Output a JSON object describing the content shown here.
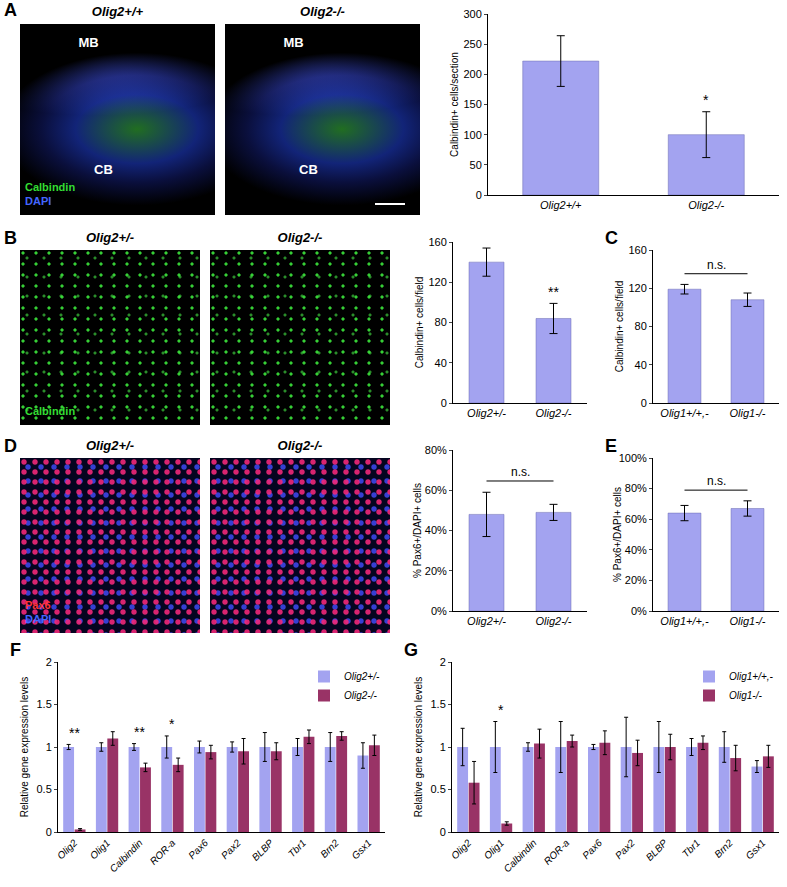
{
  "image_rows": [
    {
      "panel": "A",
      "images": [
        {
          "label": "Olig2+/+",
          "regions": [
            "MB",
            "CB"
          ],
          "stains": [
            {
              "text": "Calbindin",
              "color": "#33dd33"
            },
            {
              "text": "DAPI",
              "color": "#4466ff"
            }
          ]
        },
        {
          "label": "Olig2-/-",
          "regions": [
            "MB",
            "CB"
          ]
        }
      ]
    },
    {
      "panel": "B",
      "images": [
        {
          "label": "Olig2+/-",
          "stains": [
            {
              "text": "Calbindin",
              "color": "#33dd33"
            }
          ]
        },
        {
          "label": "Olig2-/-"
        }
      ]
    },
    {
      "panel": "D",
      "images": [
        {
          "label": "Olig2+/-",
          "stains": [
            {
              "text": "Pax6",
              "color": "#ff3333"
            },
            {
              "text": "DAPI",
              "color": "#4466ff"
            }
          ]
        },
        {
          "label": "Olig2-/-"
        }
      ]
    }
  ],
  "chart_data": [
    {
      "type": "bar",
      "categories": [
        "Olig2+/+",
        "Olig2-/-"
      ],
      "values": [
        222,
        100
      ],
      "errors": [
        42,
        38
      ],
      "color": "#a3a3f0",
      "ylabel": "Calbindin+ cells/section",
      "ylim": [
        0,
        300
      ],
      "yticks": [
        0,
        50,
        100,
        150,
        200,
        250,
        300
      ],
      "grid": false,
      "annotations": [
        {
          "text": "*",
          "category": "Olig2-/-"
        }
      ]
    },
    {
      "type": "bar",
      "categories": [
        "Olig2+/-",
        "Olig2-/-"
      ],
      "values": [
        140,
        84
      ],
      "errors": [
        14,
        15
      ],
      "color": "#a3a3f0",
      "ylabel": "Calbindin+ cells/field",
      "ylim": [
        0,
        160
      ],
      "yticks": [
        0,
        40,
        80,
        120,
        160
      ],
      "grid": false,
      "annotations": [
        {
          "text": "**",
          "category": "Olig2-/-"
        }
      ]
    },
    {
      "type": "bar",
      "title": "C",
      "categories": [
        "Olig1+/+,-",
        "Olig1-/-"
      ],
      "values": [
        119,
        108
      ],
      "errors": [
        5,
        7
      ],
      "color": "#a3a3f0",
      "ylabel": "Calbindin+ cells/field",
      "ylim": [
        0,
        160
      ],
      "yticks": [
        0,
        40,
        80,
        120,
        160
      ],
      "grid": false,
      "annotations": [
        {
          "text": "n.s.",
          "categories": [
            "Olig1+/+,-",
            "Olig1-/-"
          ]
        }
      ]
    },
    {
      "type": "bar",
      "categories": [
        "Olig2+/-",
        "Olig2-/-"
      ],
      "values": [
        48,
        49
      ],
      "errors": [
        11,
        4
      ],
      "color": "#a3a3f0",
      "ylabel": "% Pax6+/DAPI+ cells",
      "ylim": [
        0,
        80
      ],
      "yticks": [
        {
          "value": 0,
          "label": "0%"
        },
        {
          "value": 20,
          "label": "20%"
        },
        {
          "value": 40,
          "label": "40%"
        },
        {
          "value": 60,
          "label": "60%"
        },
        {
          "value": 80,
          "label": "80%"
        }
      ],
      "grid": false,
      "annotations": [
        {
          "text": "n.s.",
          "categories": [
            "Olig2+/-",
            "Olig2-/-"
          ]
        }
      ]
    },
    {
      "type": "bar",
      "title": "E",
      "categories": [
        "Olig1+/+,-",
        "Olig1-/-"
      ],
      "values": [
        64,
        67
      ],
      "errors": [
        5,
        5
      ],
      "color": "#a3a3f0",
      "ylabel": "% Pax6+/DAPI+ cells",
      "ylim": [
        0,
        100
      ],
      "yticks": [
        {
          "value": 0,
          "label": "0%"
        },
        {
          "value": 20,
          "label": "20%"
        },
        {
          "value": 40,
          "label": "40%"
        },
        {
          "value": 60,
          "label": "60%"
        },
        {
          "value": 80,
          "label": "80%"
        },
        {
          "value": 100,
          "label": "100%"
        }
      ],
      "grid": false,
      "annotations": [
        {
          "text": "n.s.",
          "categories": [
            "Olig1+/+,-",
            "Olig1-/-"
          ]
        }
      ]
    },
    {
      "type": "bar",
      "title": "F",
      "categories": [
        "Olig2",
        "Olig1",
        "Calbindin",
        "ROR-a",
        "Pax6",
        "Pax2",
        "BLBP",
        "Tbr1",
        "Brn2",
        "Gsx1"
      ],
      "series": [
        {
          "name": "Olig2+/-",
          "color": "#a3a3f0",
          "values": [
            1,
            1,
            1,
            1,
            1,
            1,
            1,
            1,
            1,
            0.9
          ],
          "errors": [
            0.03,
            0.05,
            0.04,
            0.13,
            0.07,
            0.06,
            0.17,
            0.1,
            0.17,
            0.15
          ]
        },
        {
          "name": "Olig2-/-",
          "color": "#993366",
          "values": [
            0.03,
            1.1,
            0.76,
            0.79,
            0.94,
            0.95,
            0.95,
            1.12,
            1.13,
            1.02
          ],
          "errors": [
            0.01,
            0.08,
            0.05,
            0.08,
            0.08,
            0.15,
            0.1,
            0.08,
            0.05,
            0.12
          ]
        }
      ],
      "ylabel": "Relative gene expression levels",
      "ylim": [
        0,
        2
      ],
      "yticks": [
        0,
        0.5,
        1,
        1.5,
        2
      ],
      "grid": false,
      "legend": "top-right",
      "annotations": [
        {
          "text": "**",
          "category": "Olig2"
        },
        {
          "text": "**",
          "category": "Calbindin"
        },
        {
          "text": "*",
          "category": "ROR-a"
        }
      ]
    },
    {
      "type": "bar",
      "title": "G",
      "categories": [
        "Olig2",
        "Olig1",
        "Calbindin",
        "ROR-a",
        "Pax6",
        "Pax2",
        "BLBP",
        "Tbr1",
        "Brn2",
        "Gsx1"
      ],
      "series": [
        {
          "name": "Olig1+/+,-",
          "color": "#a3a3f0",
          "values": [
            1,
            1,
            1,
            1,
            1,
            1,
            1,
            1,
            1,
            0.77
          ],
          "errors": [
            0.22,
            0.3,
            0.05,
            0.3,
            0.03,
            0.35,
            0.3,
            0.1,
            0.18,
            0.07
          ]
        },
        {
          "name": "Olig1-/-",
          "color": "#993366",
          "values": [
            0.58,
            0.1,
            1.04,
            1.07,
            1.05,
            0.93,
            1.0,
            1.05,
            0.87,
            0.89
          ],
          "errors": [
            0.25,
            0.02,
            0.17,
            0.07,
            0.14,
            0.15,
            0.15,
            0.08,
            0.15,
            0.13
          ]
        }
      ],
      "ylabel": "Relative gene expression levels",
      "ylim": [
        0,
        2
      ],
      "yticks": [
        0,
        0.5,
        1,
        1.5,
        2
      ],
      "grid": false,
      "legend": "top-right",
      "annotations": [
        {
          "text": "*",
          "category": "Olig1"
        }
      ]
    }
  ]
}
